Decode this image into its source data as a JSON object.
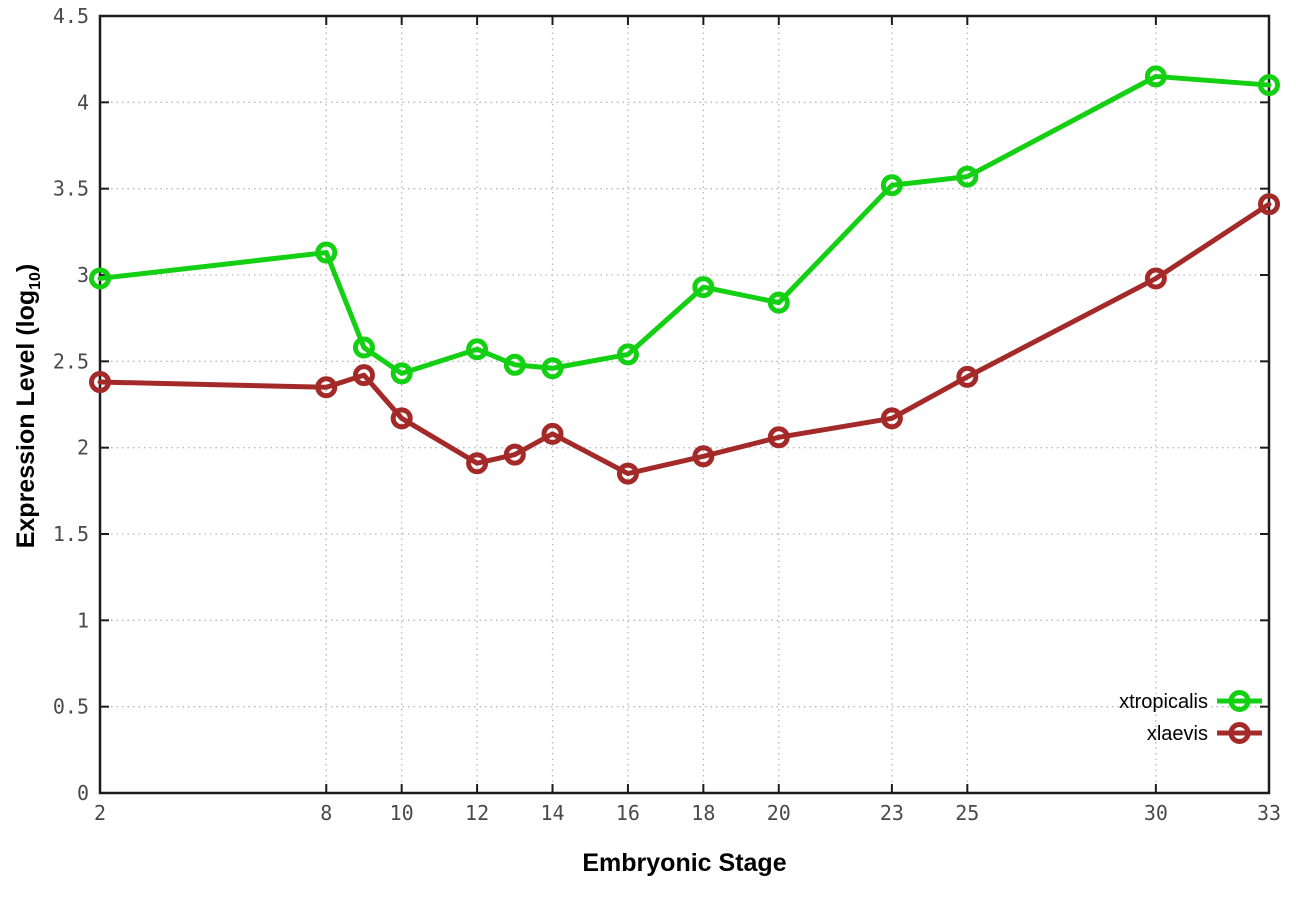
{
  "chart_data": {
    "type": "line",
    "title": "",
    "xlabel": "Embryonic Stage",
    "ylabel": "Expression Level (log10)",
    "ylabel_parts": {
      "main": "Expression Level (log",
      "sub": "10",
      "close": ")"
    },
    "x": [
      2,
      8,
      9,
      10,
      12,
      13,
      14,
      16,
      18,
      20,
      23,
      25,
      30,
      33
    ],
    "xticks": [
      2,
      8,
      10,
      12,
      14,
      16,
      18,
      20,
      23,
      25,
      30,
      33
    ],
    "yticks": [
      0,
      0.5,
      1,
      1.5,
      2,
      2.5,
      3,
      3.5,
      4,
      4.5
    ],
    "xlim": [
      2,
      33
    ],
    "ylim": [
      0,
      4.5
    ],
    "grid": true,
    "legend_position": "inside-bottom-right",
    "series": [
      {
        "name": "xtropicalis",
        "color": "#13d013",
        "marker": "open-circle",
        "values": [
          2.98,
          3.13,
          2.58,
          2.43,
          2.57,
          2.48,
          2.46,
          2.54,
          2.93,
          2.84,
          3.52,
          3.57,
          4.15,
          4.1
        ]
      },
      {
        "name": "xlaevis",
        "color": "#a42a2a",
        "marker": "open-circle",
        "values": [
          2.38,
          2.35,
          2.42,
          2.17,
          1.91,
          1.96,
          2.08,
          1.85,
          1.95,
          2.06,
          2.17,
          2.41,
          2.98,
          3.41
        ]
      }
    ],
    "colors": {
      "grid": "#b8b8b8",
      "border": "#1c1c1c",
      "tick_label": "#4a4a4a",
      "axis_title": "#000000",
      "background": "#ffffff"
    }
  }
}
